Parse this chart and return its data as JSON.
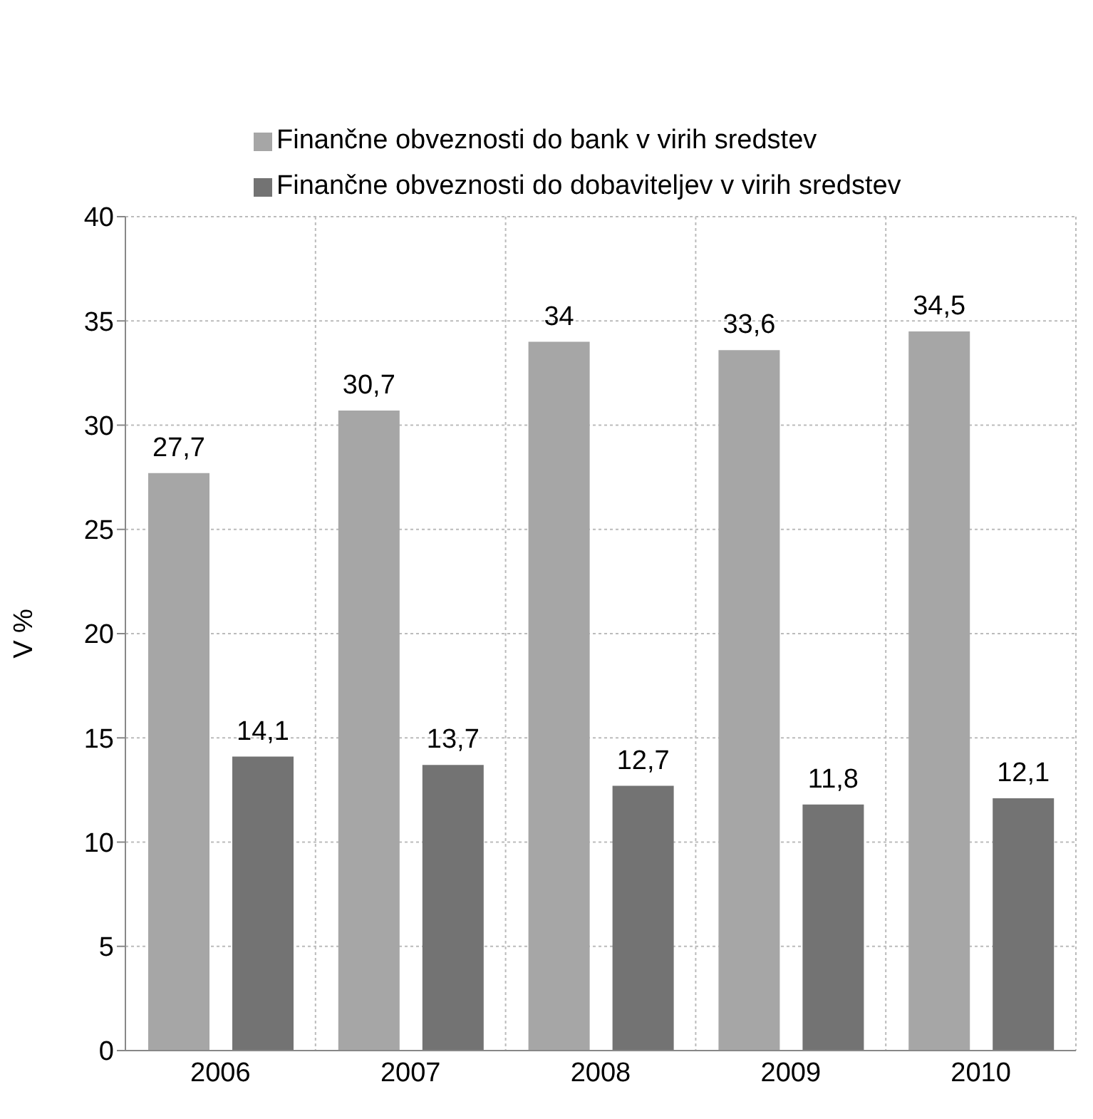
{
  "chart_data": {
    "type": "bar",
    "ylabel": "V %",
    "categories": [
      "2006",
      "2007",
      "2008",
      "2009",
      "2010"
    ],
    "series": [
      {
        "name": "Finančne obveznosti do bank v virih sredstev",
        "color": "#a6a6a6",
        "values": [
          27.7,
          30.7,
          34,
          33.6,
          34.5
        ],
        "value_labels": [
          "27,7",
          "30,7",
          "34",
          "33,6",
          "34,5"
        ]
      },
      {
        "name": "Finančne obveznosti do dobaviteljev v virih sredstev",
        "color": "#737373",
        "values": [
          14.1,
          13.7,
          12.7,
          11.8,
          12.1
        ],
        "value_labels": [
          "14,1",
          "13,7",
          "12,7",
          "11,8",
          "12,1"
        ]
      }
    ],
    "ylim": [
      0,
      40
    ],
    "yticks": [
      0,
      5,
      10,
      15,
      20,
      25,
      30,
      35,
      40
    ],
    "grid": true,
    "legend": "top"
  }
}
